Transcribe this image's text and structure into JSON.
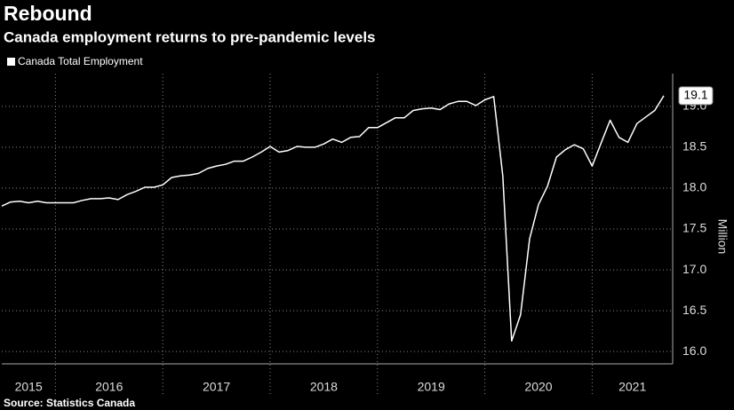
{
  "chart_data": {
    "type": "line",
    "title": "Rebound",
    "subtitle": "Canada employment returns to pre-pandemic levels",
    "source": "Source: Statistics Canada",
    "ylabel": "Million",
    "x": [
      2015.5,
      2015.583,
      2015.667,
      2015.75,
      2015.833,
      2015.917,
      2016,
      2016.083,
      2016.167,
      2016.25,
      2016.333,
      2016.417,
      2016.5,
      2016.583,
      2016.667,
      2016.75,
      2016.833,
      2016.917,
      2017,
      2017.083,
      2017.167,
      2017.25,
      2017.333,
      2017.417,
      2017.5,
      2017.583,
      2017.667,
      2017.75,
      2017.833,
      2017.917,
      2018,
      2018.083,
      2018.167,
      2018.25,
      2018.333,
      2018.417,
      2018.5,
      2018.583,
      2018.667,
      2018.75,
      2018.833,
      2018.917,
      2019,
      2019.083,
      2019.167,
      2019.25,
      2019.333,
      2019.417,
      2019.5,
      2019.583,
      2019.667,
      2019.75,
      2019.833,
      2019.917,
      2020,
      2020.083,
      2020.167,
      2020.25,
      2020.333,
      2020.417,
      2020.5,
      2020.583,
      2020.667,
      2020.75,
      2020.833,
      2020.917,
      2021,
      2021.083,
      2021.167,
      2021.25,
      2021.333,
      2021.417,
      2021.5,
      2021.583,
      2021.667
    ],
    "series": [
      {
        "name": "Canada Total Employment",
        "color": "#ffffff",
        "values": [
          17.78,
          17.83,
          17.84,
          17.82,
          17.84,
          17.82,
          17.82,
          17.82,
          17.82,
          17.85,
          17.87,
          17.87,
          17.88,
          17.86,
          17.92,
          17.96,
          18.01,
          18.01,
          18.04,
          18.13,
          18.15,
          18.16,
          18.18,
          18.24,
          18.27,
          18.29,
          18.33,
          18.33,
          18.38,
          18.44,
          18.51,
          18.44,
          18.46,
          18.51,
          18.5,
          18.5,
          18.54,
          18.6,
          18.56,
          18.62,
          18.63,
          18.74,
          18.74,
          18.8,
          18.86,
          18.86,
          18.95,
          18.97,
          18.98,
          18.96,
          19.03,
          19.06,
          19.06,
          19.01,
          19.08,
          19.12,
          18.15,
          16.13,
          16.45,
          17.38,
          17.8,
          18.02,
          18.38,
          18.47,
          18.53,
          18.48,
          18.27,
          18.55,
          18.83,
          18.62,
          18.56,
          18.79,
          18.87,
          18.95,
          19.13
        ],
        "value_labels": [
          null,
          null,
          null,
          null,
          null,
          null,
          null,
          null,
          null,
          null,
          null,
          null,
          null,
          null,
          null,
          null,
          null,
          null,
          null,
          null,
          null,
          null,
          null,
          null,
          null,
          null,
          null,
          null,
          null,
          null,
          null,
          null,
          null,
          null,
          null,
          null,
          null,
          null,
          null,
          null,
          null,
          null,
          null,
          null,
          null,
          null,
          null,
          null,
          null,
          null,
          null,
          null,
          null,
          null,
          null,
          null,
          null,
          null,
          null,
          null,
          null,
          null,
          null,
          null,
          null,
          null,
          null,
          null,
          null,
          null,
          null,
          null,
          null,
          null,
          "19.1"
        ]
      }
    ],
    "xlim": [
      2015.5,
      2021.75
    ],
    "xticks": [
      2015,
      2016,
      2017,
      2018,
      2019,
      2020,
      2021
    ],
    "ylim": [
      15.85,
      19.4
    ],
    "yticks": [
      {
        "value": 16,
        "label": "16.0"
      },
      {
        "value": 16.5,
        "label": "16.5"
      },
      {
        "value": 17,
        "label": "17.0"
      },
      {
        "value": 17.5,
        "label": "17.5"
      },
      {
        "value": 18,
        "label": "18.0"
      },
      {
        "value": 18.5,
        "label": "18.5"
      },
      {
        "value": 19,
        "label": "19.0"
      }
    ],
    "grid": true,
    "legend": "top-left"
  }
}
